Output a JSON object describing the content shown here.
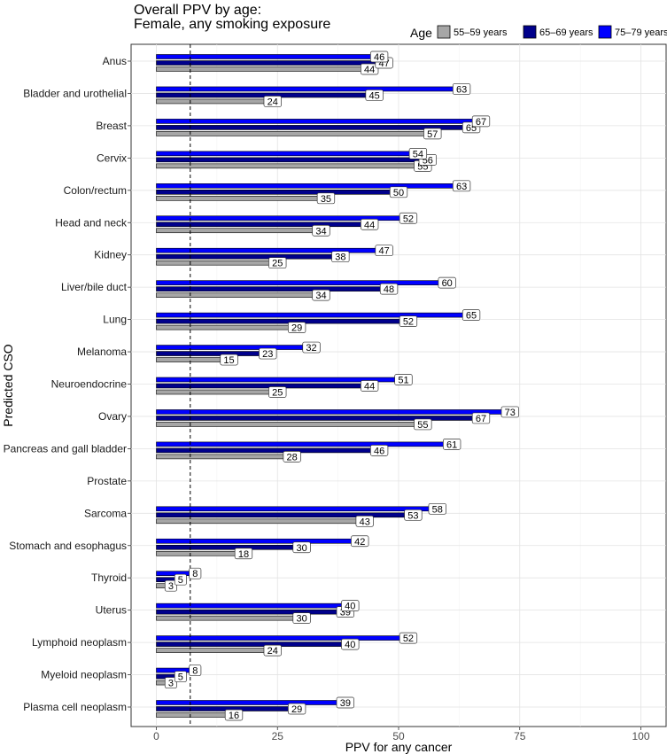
{
  "chart_data": {
    "type": "bar",
    "orientation": "horizontal",
    "title": "Overall PPV by age:",
    "subtitle": "Female, any smoking exposure",
    "xlabel": "PPV for any cancer",
    "ylabel": "Predicted CSO",
    "xlim": [
      0,
      100
    ],
    "xticks": [
      0,
      25,
      50,
      75,
      100
    ],
    "reference_line_x": 7,
    "legend_title": "Age",
    "legend_position": "top-right",
    "categories": [
      "Anus",
      "Bladder and urothelial",
      "Breast",
      "Cervix",
      "Colon/rectum",
      "Head and neck",
      "Kidney",
      "Liver/bile duct",
      "Lung",
      "Melanoma",
      "Neuroendocrine",
      "Ovary",
      "Pancreas and gall bladder",
      "Prostate",
      "Sarcoma",
      "Stomach and esophagus",
      "Thyroid",
      "Uterus",
      "Lymphoid neoplasm",
      "Myeloid neoplasm",
      "Plasma cell neoplasm"
    ],
    "series": [
      {
        "name": "55–59 years",
        "color": "#a6a6a6",
        "values": [
          44,
          24,
          57,
          55,
          35,
          34,
          25,
          34,
          29,
          15,
          25,
          55,
          28,
          null,
          43,
          18,
          3,
          30,
          24,
          3,
          16
        ]
      },
      {
        "name": "65–69 years",
        "color": "#00008b",
        "values": [
          47,
          45,
          65,
          56,
          50,
          44,
          38,
          48,
          52,
          23,
          44,
          67,
          46,
          null,
          53,
          30,
          5,
          39,
          40,
          5,
          29
        ]
      },
      {
        "name": "75–79 years",
        "color": "#0000ff",
        "values": [
          46,
          63,
          67,
          54,
          63,
          52,
          47,
          60,
          65,
          32,
          51,
          73,
          61,
          null,
          58,
          42,
          8,
          40,
          52,
          8,
          39
        ]
      }
    ]
  }
}
